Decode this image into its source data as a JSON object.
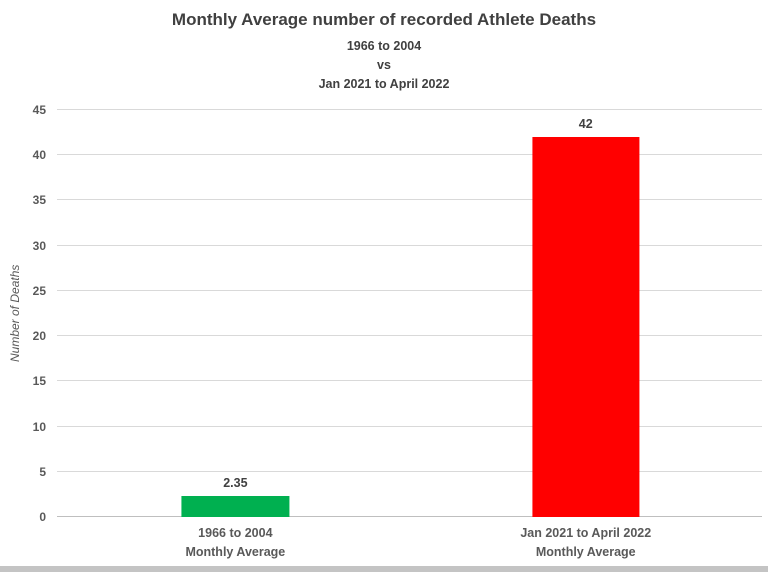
{
  "header": {
    "title": "Monthly Average number of recorded Athlete Deaths",
    "subtitle_line1": "1966 to 2004",
    "subtitle_line2": "vs",
    "subtitle_line3": "Jan 2021 to April 2022"
  },
  "chart_data": {
    "type": "bar",
    "title": "Monthly Average number of recorded Athlete Deaths",
    "subtitle": "1966 to 2004 vs Jan 2021 to April 2022",
    "categories": [
      "1966 to 2004 Monthly Average",
      "Jan 2021 to April 2022 Monthly Average"
    ],
    "values": [
      2.35,
      42
    ],
    "value_labels": [
      "2.35",
      "42"
    ],
    "bar_colors": [
      "#00b050",
      "#ff0000"
    ],
    "xlabel": "",
    "ylabel": "Number of Deaths",
    "ylim": [
      0,
      45
    ],
    "yticks": [
      0,
      5,
      10,
      15,
      20,
      25,
      30,
      35,
      40,
      45
    ],
    "grid": true,
    "legend": false,
    "bar_centers_pct": [
      25.3,
      75
    ],
    "bar_width_pct": 15.2,
    "colors": {
      "gridline": "#d9d9d9",
      "axis_line": "#bfbfbf",
      "title_text": "#404040",
      "axis_text": "#595959"
    }
  },
  "x_axis": {
    "cat1_line1": "1966 to 2004",
    "cat1_line2": "Monthly Average",
    "cat2_line1": "Jan 2021 to April 2022",
    "cat2_line2": "Monthly Average"
  }
}
